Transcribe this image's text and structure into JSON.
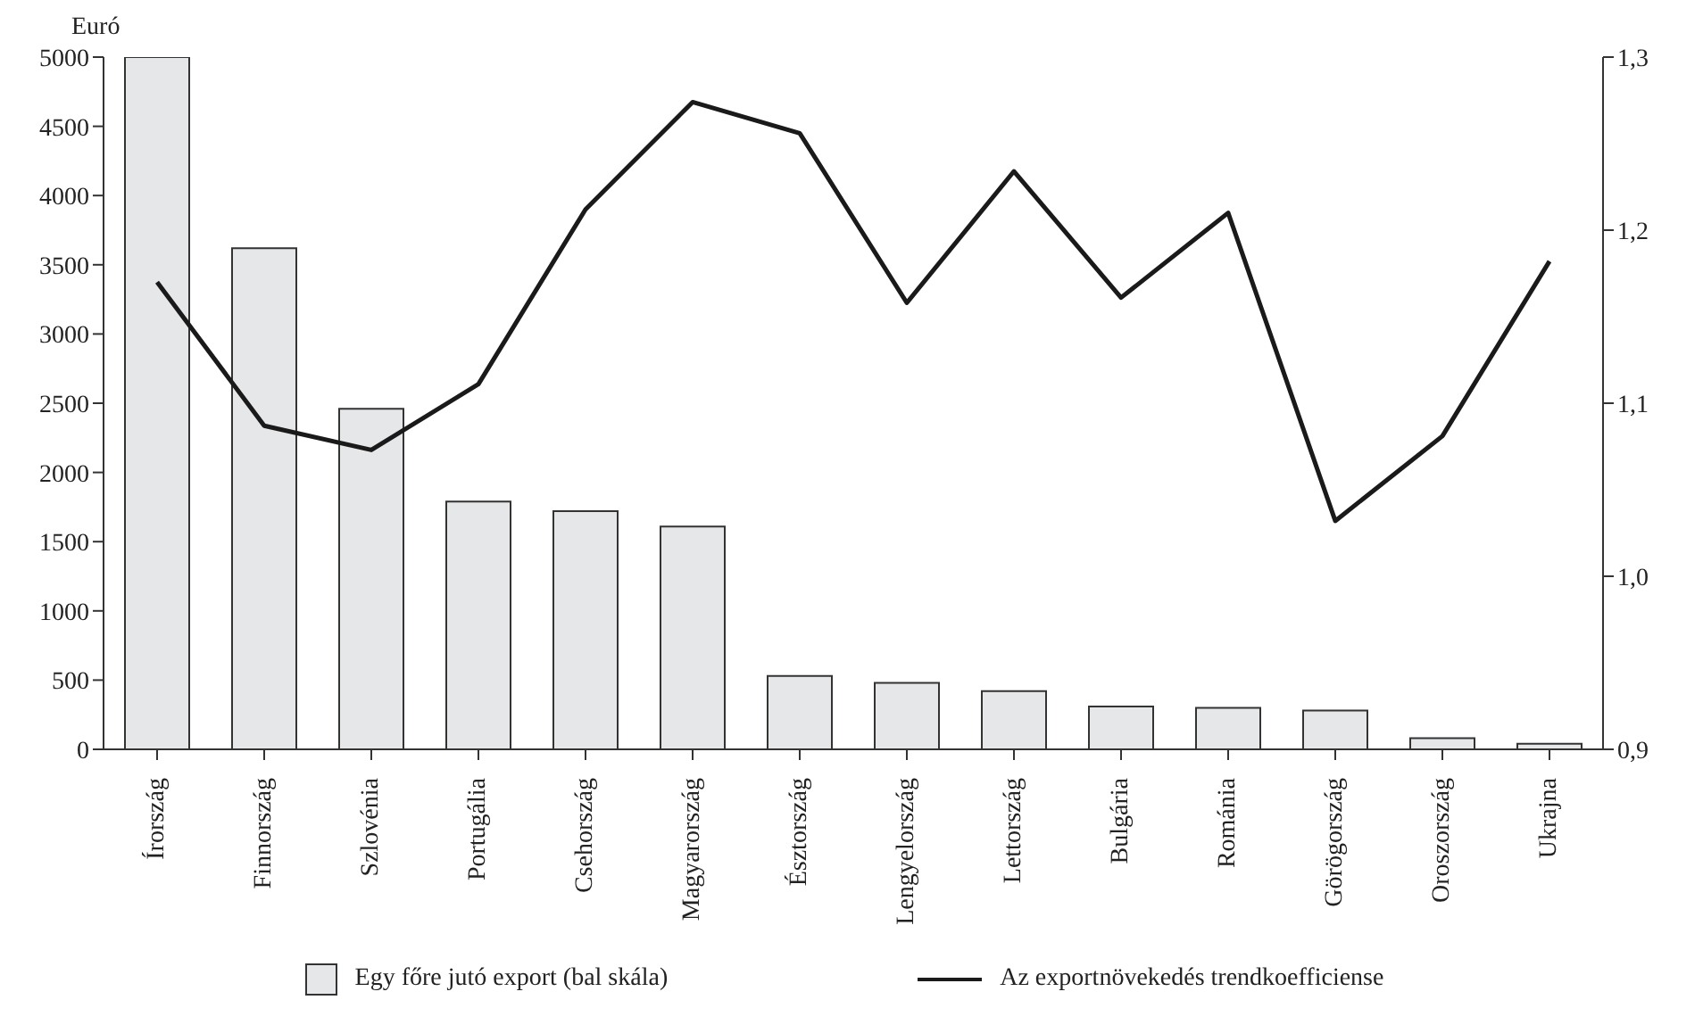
{
  "chart_data": {
    "type": "bar",
    "ylabel": "Euró",
    "categories": [
      "Írország",
      "Finnország",
      "Szlovénia",
      "Portugália",
      "Csehország",
      "Magyarország",
      "Észtország",
      "Lengyelország",
      "Lettország",
      "Bulgária",
      "Románia",
      "Görögország",
      "Oroszország",
      "Ukrajna"
    ],
    "series": [
      {
        "name": "Egy főre jutó export (bal skála)",
        "color": "#e6e7e9",
        "values": [
          5000,
          3620,
          2460,
          1790,
          1720,
          1610,
          530,
          480,
          420,
          310,
          300,
          280,
          80,
          40
        ]
      },
      {
        "name": "Az exportnövekedés trendkoefficiense",
        "type": "line",
        "axis": "y2",
        "color": "#1a1a1a",
        "values": [
          1.17,
          1.087,
          1.073,
          1.111,
          1.212,
          1.274,
          1.256,
          1.158,
          1.234,
          1.161,
          1.21,
          1.032,
          1.081,
          1.182
        ]
      }
    ],
    "ylim": [
      0,
      5000
    ],
    "yticks": [
      0,
      500,
      1000,
      1500,
      2000,
      2500,
      3000,
      3500,
      4000,
      4500,
      5000
    ],
    "y2lim": [
      0.9,
      1.3
    ],
    "y2ticks": [
      {
        "value": 0.9,
        "label": "0,9"
      },
      {
        "value": 1.0,
        "label": "1,0"
      },
      {
        "value": 1.1,
        "label": "1,1"
      },
      {
        "value": 1.2,
        "label": "1,2"
      },
      {
        "value": 1.3,
        "label": "1,3"
      }
    ],
    "grid": false,
    "legend": "bottom",
    "marker": "none",
    "line_style": "solid"
  }
}
